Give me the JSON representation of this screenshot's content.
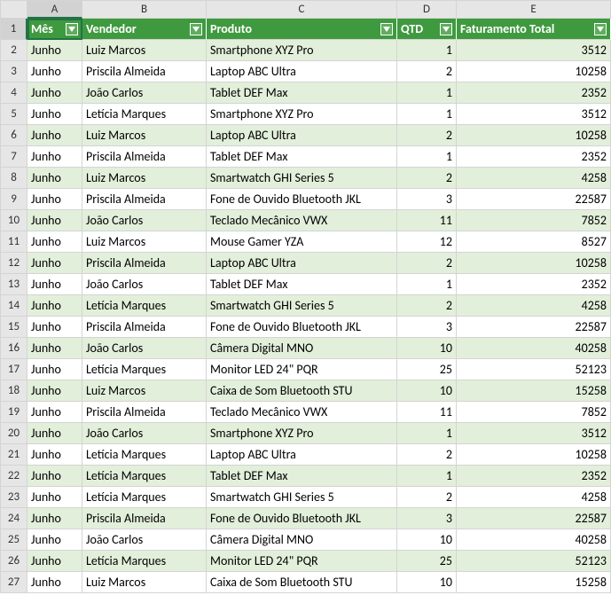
{
  "columns_letters": [
    "A",
    "B",
    "C",
    "D",
    "E"
  ],
  "selected_cell": "A1",
  "headers": [
    {
      "key": "mes",
      "label": "Mês"
    },
    {
      "key": "vendedor",
      "label": "Vendedor"
    },
    {
      "key": "produto",
      "label": "Produto"
    },
    {
      "key": "qtd",
      "label": "QTD"
    },
    {
      "key": "fat",
      "label": "Faturamento Total"
    }
  ],
  "colors": {
    "header_bg": "#3f9a3f",
    "header_text": "#ffffff",
    "row_even_bg": "#e2efda",
    "row_odd_bg": "#ffffff",
    "grid_border": "#d4d4d4",
    "col_header_bg": "#e6e6e6",
    "selection_green": "#217346"
  },
  "rows": [
    {
      "n": 2,
      "mes": "Junho",
      "vendedor": "Luiz Marcos",
      "produto": "Smartphone XYZ Pro",
      "qtd": 1,
      "fat": 3512
    },
    {
      "n": 3,
      "mes": "Junho",
      "vendedor": "Priscila Almeida",
      "produto": "Laptop ABC Ultra",
      "qtd": 2,
      "fat": 10258
    },
    {
      "n": 4,
      "mes": "Junho",
      "vendedor": "João Carlos",
      "produto": "Tablet DEF Max",
      "qtd": 1,
      "fat": 2352
    },
    {
      "n": 5,
      "mes": "Junho",
      "vendedor": "Letícia Marques",
      "produto": "Smartphone XYZ Pro",
      "qtd": 1,
      "fat": 3512
    },
    {
      "n": 6,
      "mes": "Junho",
      "vendedor": "Luiz Marcos",
      "produto": "Laptop ABC Ultra",
      "qtd": 2,
      "fat": 10258
    },
    {
      "n": 7,
      "mes": "Junho",
      "vendedor": "Priscila Almeida",
      "produto": "Tablet DEF Max",
      "qtd": 1,
      "fat": 2352
    },
    {
      "n": 8,
      "mes": "Junho",
      "vendedor": "Luiz Marcos",
      "produto": "Smartwatch GHI Series 5",
      "qtd": 2,
      "fat": 4258
    },
    {
      "n": 9,
      "mes": "Junho",
      "vendedor": "Priscila Almeida",
      "produto": "Fone de Ouvido Bluetooth JKL",
      "qtd": 3,
      "fat": 22587
    },
    {
      "n": 10,
      "mes": "Junho",
      "vendedor": "João Carlos",
      "produto": "Teclado Mecânico VWX",
      "qtd": 11,
      "fat": 7852
    },
    {
      "n": 11,
      "mes": "Junho",
      "vendedor": "Luiz Marcos",
      "produto": "Mouse Gamer YZA",
      "qtd": 12,
      "fat": 8527
    },
    {
      "n": 12,
      "mes": "Junho",
      "vendedor": "Priscila Almeida",
      "produto": "Laptop ABC Ultra",
      "qtd": 2,
      "fat": 10258
    },
    {
      "n": 13,
      "mes": "Junho",
      "vendedor": "João Carlos",
      "produto": "Tablet DEF Max",
      "qtd": 1,
      "fat": 2352
    },
    {
      "n": 14,
      "mes": "Junho",
      "vendedor": "Letícia Marques",
      "produto": "Smartwatch GHI Series 5",
      "qtd": 2,
      "fat": 4258
    },
    {
      "n": 15,
      "mes": "Junho",
      "vendedor": "Priscila Almeida",
      "produto": "Fone de Ouvido Bluetooth JKL",
      "qtd": 3,
      "fat": 22587
    },
    {
      "n": 16,
      "mes": "Junho",
      "vendedor": "João Carlos",
      "produto": "Câmera Digital MNO",
      "qtd": 10,
      "fat": 40258
    },
    {
      "n": 17,
      "mes": "Junho",
      "vendedor": "Letícia Marques",
      "produto": "Monitor LED 24\" PQR",
      "qtd": 25,
      "fat": 52123
    },
    {
      "n": 18,
      "mes": "Junho",
      "vendedor": "Luiz Marcos",
      "produto": "Caixa de Som Bluetooth STU",
      "qtd": 10,
      "fat": 15258
    },
    {
      "n": 19,
      "mes": "Junho",
      "vendedor": "Priscila Almeida",
      "produto": "Teclado Mecânico VWX",
      "qtd": 11,
      "fat": 7852
    },
    {
      "n": 20,
      "mes": "Junho",
      "vendedor": "João Carlos",
      "produto": "Smartphone XYZ Pro",
      "qtd": 1,
      "fat": 3512
    },
    {
      "n": 21,
      "mes": "Junho",
      "vendedor": "Letícia Marques",
      "produto": "Laptop ABC Ultra",
      "qtd": 2,
      "fat": 10258
    },
    {
      "n": 22,
      "mes": "Junho",
      "vendedor": "Letícia Marques",
      "produto": "Tablet DEF Max",
      "qtd": 1,
      "fat": 2352
    },
    {
      "n": 23,
      "mes": "Junho",
      "vendedor": "Letícia Marques",
      "produto": "Smartwatch GHI Series 5",
      "qtd": 2,
      "fat": 4258
    },
    {
      "n": 24,
      "mes": "Junho",
      "vendedor": "Priscila Almeida",
      "produto": "Fone de Ouvido Bluetooth JKL",
      "qtd": 3,
      "fat": 22587
    },
    {
      "n": 25,
      "mes": "Junho",
      "vendedor": "João Carlos",
      "produto": "Câmera Digital MNO",
      "qtd": 10,
      "fat": 40258
    },
    {
      "n": 26,
      "mes": "Junho",
      "vendedor": "Letícia Marques",
      "produto": "Monitor LED 24\" PQR",
      "qtd": 25,
      "fat": 52123
    },
    {
      "n": 27,
      "mes": "Junho",
      "vendedor": "Luiz Marcos",
      "produto": "Caixa de Som Bluetooth STU",
      "qtd": 10,
      "fat": 15258
    }
  ]
}
